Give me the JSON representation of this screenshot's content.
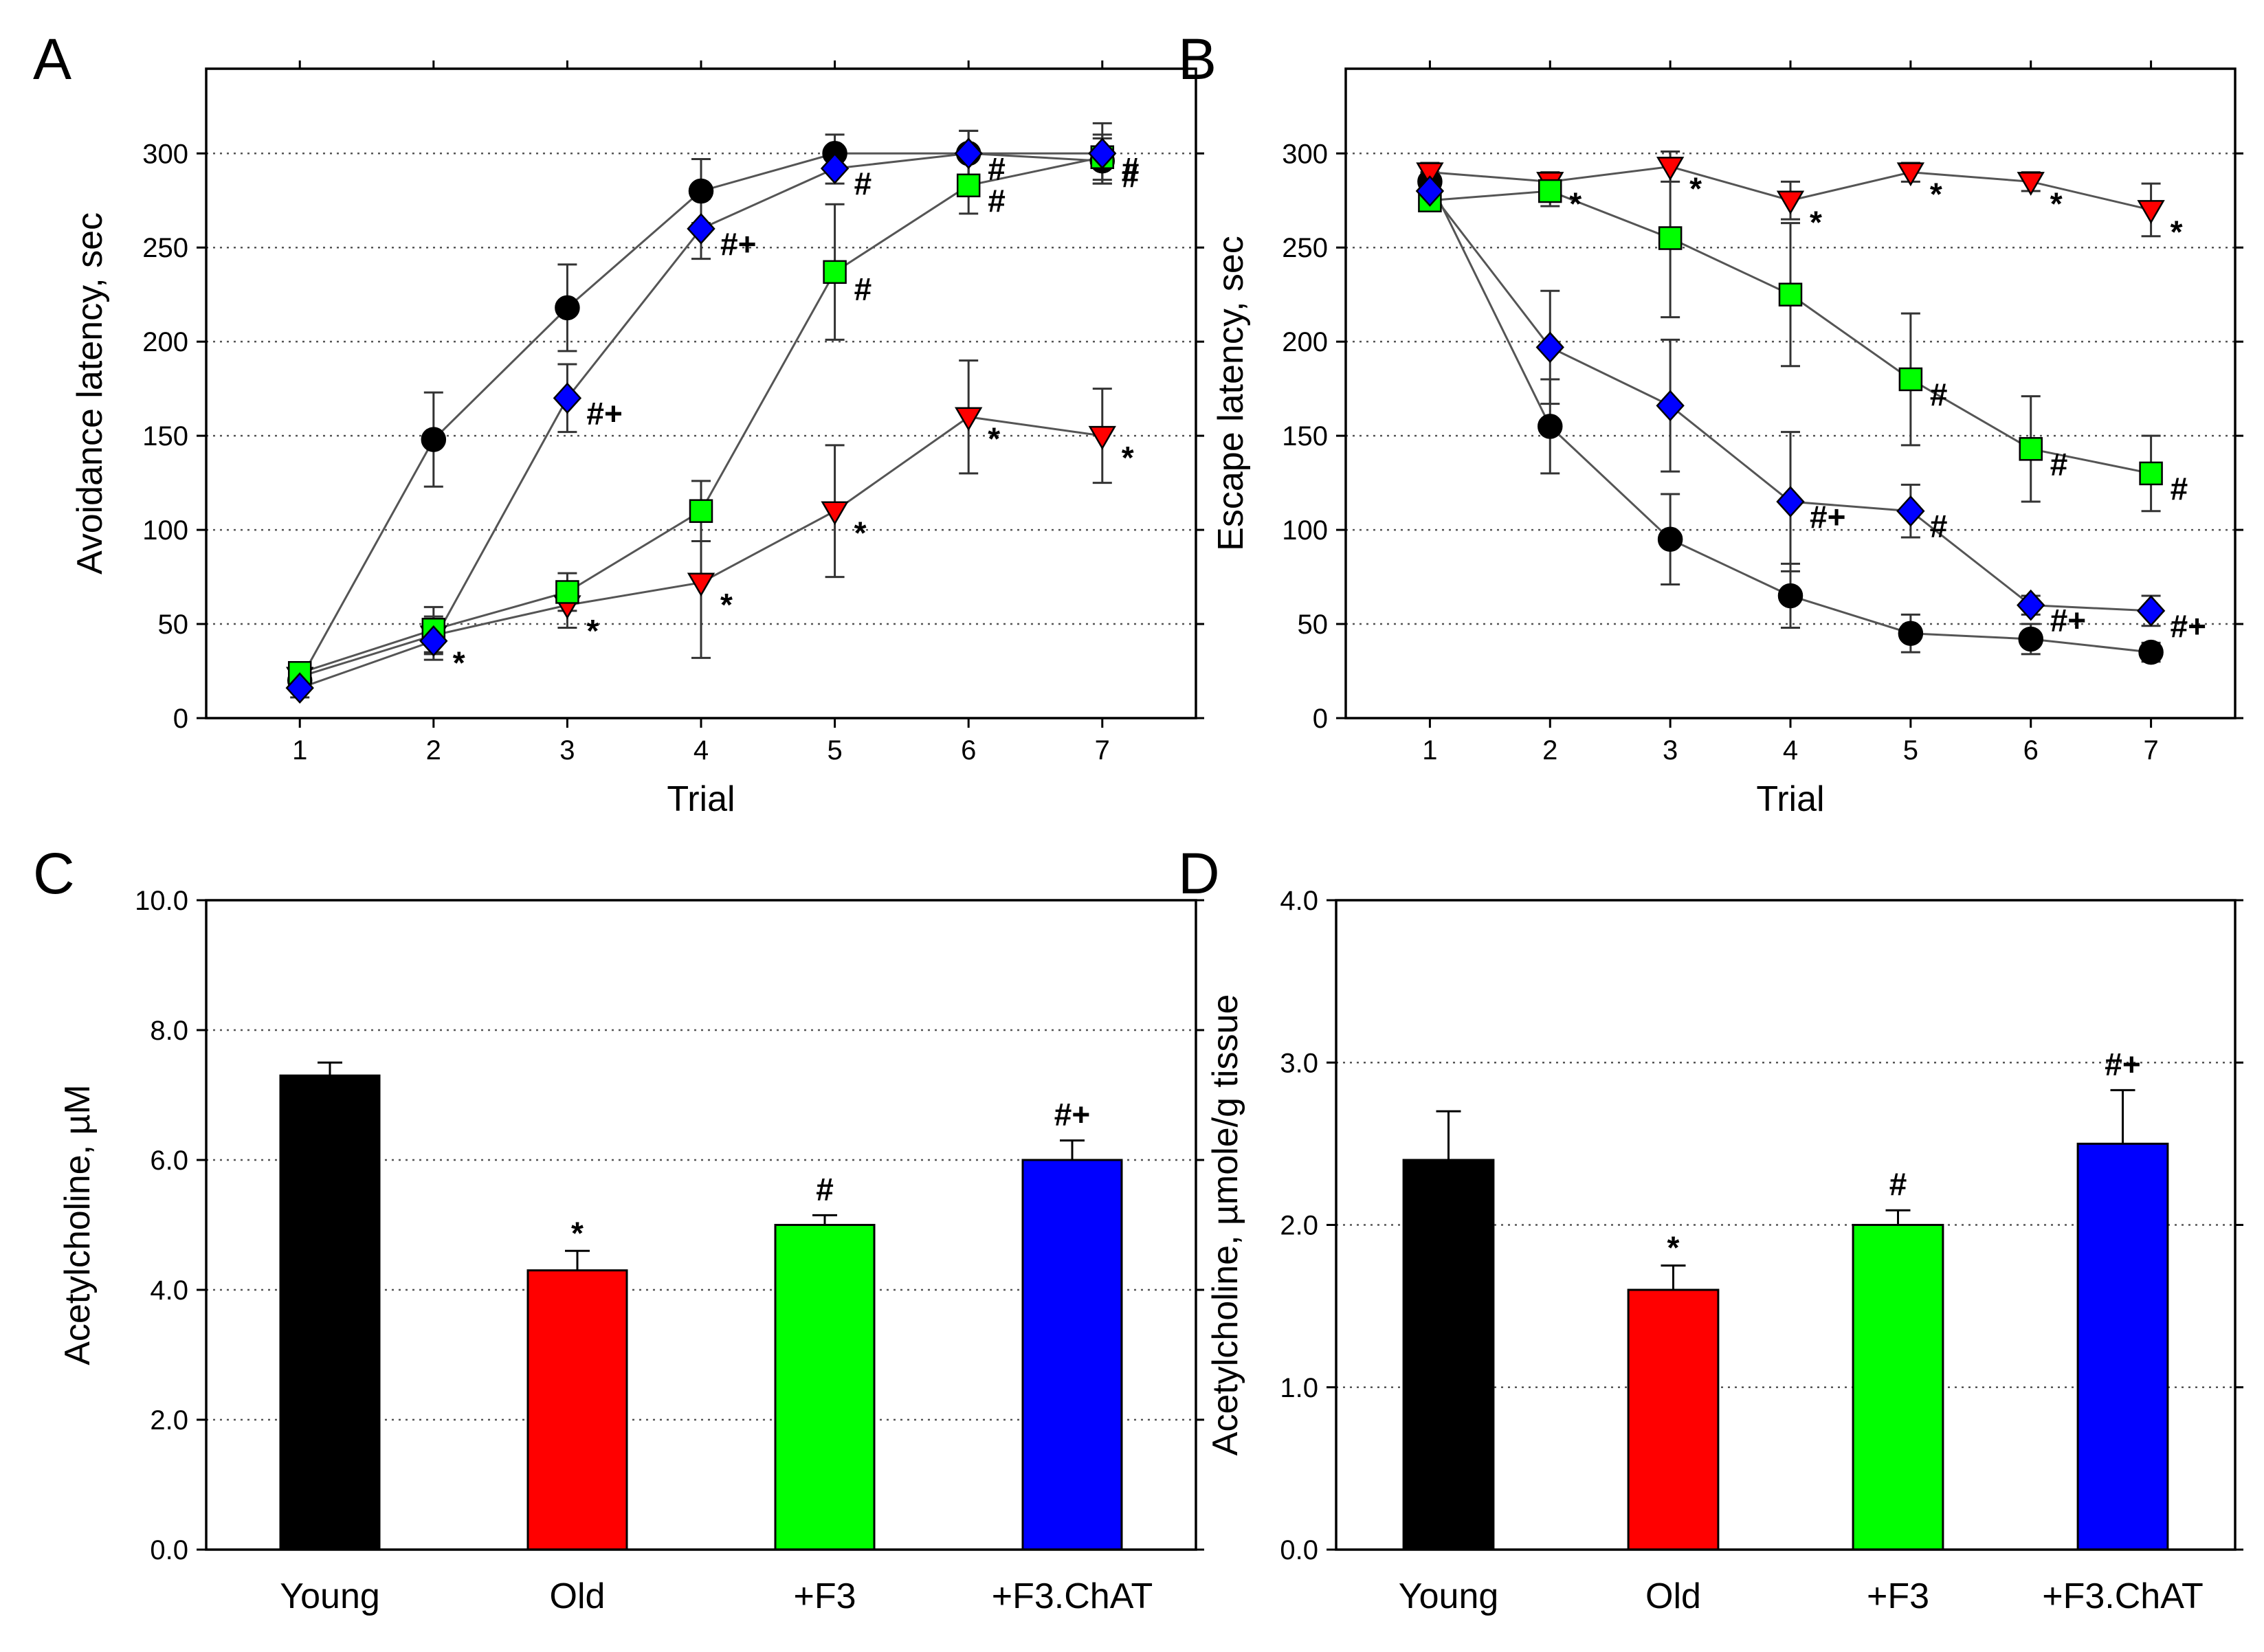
{
  "chart_data": [
    {
      "panel": "A",
      "type": "line",
      "xlabel": "Trial",
      "ylabel": "Avoidance latency, sec",
      "x": [
        1,
        2,
        3,
        4,
        5,
        6,
        7
      ],
      "xlim": [
        0.3,
        7.7
      ],
      "ylim": [
        0,
        345
      ],
      "yticks": [
        0,
        50,
        100,
        150,
        200,
        250,
        300
      ],
      "grid": true,
      "series": [
        {
          "color": "#000000",
          "marker": "circle",
          "values": [
            20,
            148,
            218,
            280,
            300,
            300,
            296
          ],
          "err": [
            5,
            25,
            23,
            17,
            10,
            12,
            12
          ]
        },
        {
          "color": "#ff0000",
          "marker": "triangle-down",
          "values": [
            22,
            44,
            60,
            72,
            110,
            160,
            150
          ],
          "err": [
            5,
            10,
            12,
            40,
            35,
            30,
            25
          ]
        },
        {
          "color": "#00ff00",
          "marker": "square",
          "values": [
            24,
            47,
            67,
            110,
            237,
            283,
            298
          ],
          "err": [
            5,
            12,
            10,
            16,
            36,
            15,
            12
          ]
        },
        {
          "color": "#0000ff",
          "marker": "diamond",
          "values": [
            16,
            41,
            170,
            260,
            292,
            300,
            300
          ],
          "err": [
            5,
            10,
            18,
            16,
            8,
            12,
            16
          ]
        }
      ],
      "annotations": [
        {
          "x": 2,
          "y": 41,
          "text": "*"
        },
        {
          "x": 3,
          "y": 58,
          "text": "*"
        },
        {
          "x": 4,
          "y": 72,
          "text": "*"
        },
        {
          "x": 5,
          "y": 110,
          "text": "*"
        },
        {
          "x": 6,
          "y": 160,
          "text": "*"
        },
        {
          "x": 7,
          "y": 150,
          "text": "*"
        },
        {
          "x": 3,
          "y": 170,
          "text": "#+"
        },
        {
          "x": 4,
          "y": 260,
          "text": "#+"
        },
        {
          "x": 5,
          "y": 236,
          "text": "#"
        },
        {
          "x": 5,
          "y": 292,
          "text": "#"
        },
        {
          "x": 6,
          "y": 283,
          "text": "#"
        },
        {
          "x": 6,
          "y": 300,
          "text": "#"
        },
        {
          "x": 7,
          "y": 300,
          "text": "#"
        },
        {
          "x": 7,
          "y": 296,
          "text": "#"
        }
      ]
    },
    {
      "panel": "B",
      "type": "line",
      "xlabel": "Trial",
      "ylabel": "Escape latency, sec",
      "x": [
        1,
        2,
        3,
        4,
        5,
        6,
        7
      ],
      "xlim": [
        0.3,
        7.7
      ],
      "ylim": [
        0,
        345
      ],
      "yticks": [
        0,
        50,
        100,
        150,
        200,
        250,
        300
      ],
      "grid": true,
      "series": [
        {
          "color": "#000000",
          "marker": "circle",
          "values": [
            285,
            155,
            95,
            65,
            45,
            42,
            35
          ],
          "err": [
            5,
            25,
            24,
            17,
            10,
            8,
            5
          ]
        },
        {
          "color": "#ff0000",
          "marker": "triangle-down",
          "values": [
            290,
            285,
            293,
            275,
            290,
            285,
            270
          ],
          "err": [
            5,
            5,
            8,
            10,
            5,
            5,
            14
          ]
        },
        {
          "color": "#00ff00",
          "marker": "square",
          "values": [
            275,
            280,
            255,
            225,
            180,
            143,
            130
          ],
          "err": [
            5,
            8,
            42,
            38,
            35,
            28,
            20
          ]
        },
        {
          "color": "#0000ff",
          "marker": "diamond",
          "values": [
            280,
            197,
            166,
            115,
            110,
            60,
            57
          ],
          "err": [
            5,
            30,
            35,
            37,
            14,
            5,
            8
          ]
        }
      ],
      "annotations": [
        {
          "x": 2,
          "y": 285,
          "text": "*"
        },
        {
          "x": 3,
          "y": 293,
          "text": "*"
        },
        {
          "x": 4,
          "y": 275,
          "text": "*"
        },
        {
          "x": 5,
          "y": 290,
          "text": "*"
        },
        {
          "x": 6,
          "y": 285,
          "text": "*"
        },
        {
          "x": 7,
          "y": 270,
          "text": "*"
        },
        {
          "x": 5,
          "y": 180,
          "text": "#"
        },
        {
          "x": 6,
          "y": 143,
          "text": "#"
        },
        {
          "x": 7,
          "y": 130,
          "text": "#"
        },
        {
          "x": 4,
          "y": 115,
          "text": "#+"
        },
        {
          "x": 5,
          "y": 110,
          "text": "#"
        },
        {
          "x": 6,
          "y": 60,
          "text": "#+"
        },
        {
          "x": 7,
          "y": 57,
          "text": "#+"
        }
      ]
    },
    {
      "panel": "C",
      "type": "bar",
      "ylabel": "Acetylcholine, µM",
      "categories": [
        "Young",
        "Old",
        "+F3",
        "+F3.ChAT"
      ],
      "values": [
        7.3,
        4.3,
        5.0,
        6.0
      ],
      "err": [
        0.2,
        0.3,
        0.15,
        0.3
      ],
      "colors": [
        "#000000",
        "#ff0000",
        "#00ff00",
        "#0000ff"
      ],
      "annotations": [
        "",
        "*",
        "#",
        "#+"
      ],
      "ylim": [
        0,
        10
      ],
      "yticks": [
        0,
        2,
        4,
        6,
        8,
        10
      ],
      "grid": true
    },
    {
      "panel": "D",
      "type": "bar",
      "ylabel": "Acetylcholine, µmole/g tissue",
      "categories": [
        "Young",
        "Old",
        "+F3",
        "+F3.ChAT"
      ],
      "values": [
        2.4,
        1.6,
        2.0,
        2.5
      ],
      "err": [
        0.3,
        0.15,
        0.09,
        0.33
      ],
      "colors": [
        "#000000",
        "#ff0000",
        "#00ff00",
        "#0000ff"
      ],
      "annotations": [
        "",
        "*",
        "#",
        "#+"
      ],
      "ylim": [
        0,
        4
      ],
      "yticks": [
        0,
        1,
        2,
        3,
        4
      ],
      "grid": true
    }
  ]
}
